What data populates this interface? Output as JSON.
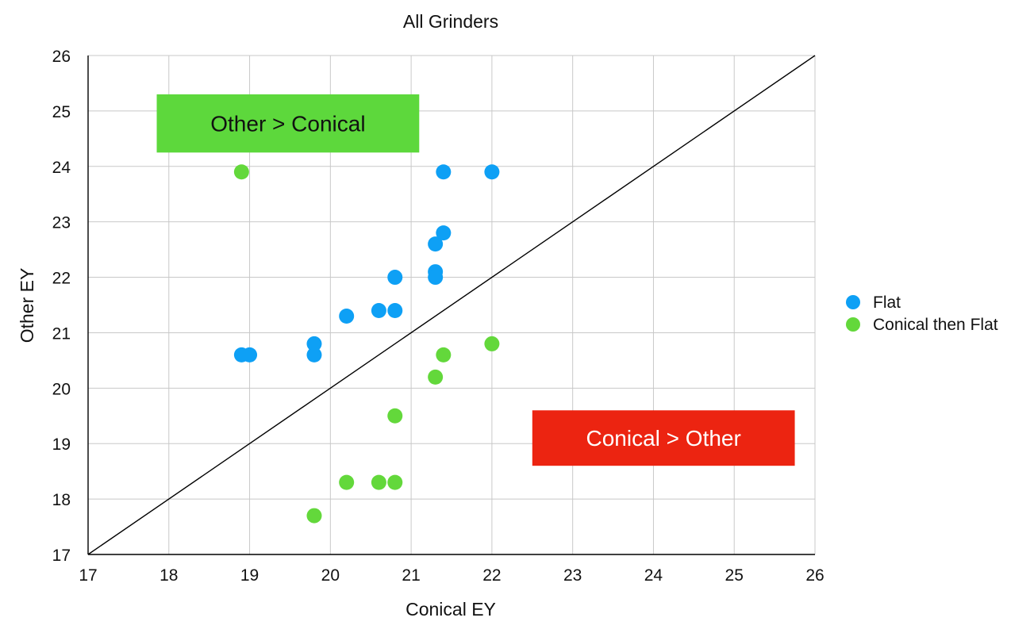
{
  "chart_data": {
    "type": "scatter",
    "title": "All Grinders",
    "xlabel": "Conical EY",
    "ylabel": "Other EY",
    "xlim": [
      17,
      26
    ],
    "ylim": [
      17,
      26
    ],
    "x_ticks": [
      "17",
      "18",
      "19",
      "20",
      "21",
      "22",
      "23",
      "24",
      "25",
      "26"
    ],
    "y_ticks": [
      "17",
      "18",
      "19",
      "20",
      "21",
      "22",
      "23",
      "24",
      "25",
      "26"
    ],
    "grid": true,
    "legend_position": "right",
    "reference_line": {
      "name": "y = x",
      "from": [
        17,
        17
      ],
      "to": [
        26,
        26
      ],
      "color": "#000000"
    },
    "series": [
      {
        "name": "Flat",
        "color": "#0ea0f5",
        "points": [
          {
            "x": 18.9,
            "y": 20.6
          },
          {
            "x": 19.0,
            "y": 20.6
          },
          {
            "x": 19.8,
            "y": 20.8
          },
          {
            "x": 19.8,
            "y": 20.6
          },
          {
            "x": 20.2,
            "y": 21.3
          },
          {
            "x": 20.6,
            "y": 21.4
          },
          {
            "x": 20.8,
            "y": 21.4
          },
          {
            "x": 20.8,
            "y": 22.0
          },
          {
            "x": 21.3,
            "y": 22.1
          },
          {
            "x": 21.3,
            "y": 22.0
          },
          {
            "x": 21.3,
            "y": 22.6
          },
          {
            "x": 21.4,
            "y": 22.8
          },
          {
            "x": 21.4,
            "y": 23.9
          },
          {
            "x": 22.0,
            "y": 23.9
          }
        ]
      },
      {
        "name": "Conical then Flat",
        "color": "#63d83b",
        "points": [
          {
            "x": 18.9,
            "y": 23.9
          },
          {
            "x": 19.8,
            "y": 17.7
          },
          {
            "x": 20.2,
            "y": 18.3
          },
          {
            "x": 20.6,
            "y": 18.3
          },
          {
            "x": 20.8,
            "y": 18.3
          },
          {
            "x": 20.8,
            "y": 19.5
          },
          {
            "x": 21.3,
            "y": 20.2
          },
          {
            "x": 21.4,
            "y": 20.6
          },
          {
            "x": 22.0,
            "y": 20.8
          }
        ]
      }
    ],
    "annotations": [
      {
        "text": "Other > Conical",
        "bg_color": "#5dd83c",
        "text_color": "#111111",
        "x_range": [
          17.85,
          21.1
        ],
        "y_range": [
          24.25,
          25.3
        ]
      },
      {
        "text": "Conical > Other",
        "bg_color": "#ec2411",
        "text_color": "#ffffff",
        "x_range": [
          22.5,
          25.75
        ],
        "y_range": [
          18.6,
          19.6
        ]
      }
    ]
  }
}
